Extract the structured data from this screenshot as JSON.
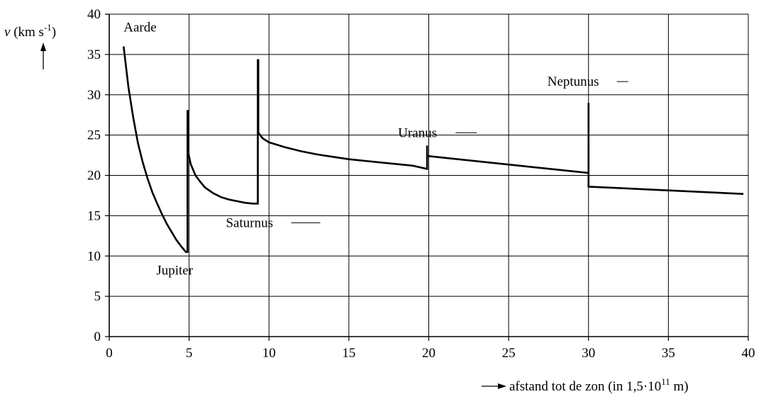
{
  "chart_data": {
    "type": "line",
    "title": "",
    "xlabel": "afstand tot de zon (in 1,5·10¹¹ m)",
    "xlabel_parts": {
      "main": "afstand tot de zon (in 1,5·10",
      "exp": "11",
      "end": " m)"
    },
    "ylabel": "v (km s⁻¹)",
    "ylabel_parts": {
      "var": "v",
      "unit": " (km s",
      "exp": "-1",
      "end": ")"
    },
    "xlim": [
      0,
      40
    ],
    "ylim": [
      0,
      40
    ],
    "xticks": [
      "0",
      "5",
      "10",
      "15",
      "20",
      "25",
      "30",
      "35",
      "40"
    ],
    "yticks": [
      "0",
      "5",
      "10",
      "15",
      "20",
      "25",
      "30",
      "35",
      "40"
    ],
    "grid": true,
    "series": [
      {
        "x": [
          0.9,
          1.2,
          1.5,
          1.8,
          2.1,
          2.4,
          2.7,
          3.0,
          3.3,
          3.6,
          3.9,
          4.2,
          4.5,
          4.8,
          4.9,
          4.9,
          4.93,
          4.93,
          4.93,
          5.1,
          5.4,
          5.7,
          6.0,
          6.5,
          7.0,
          7.5,
          8.0,
          8.5,
          9.0,
          9.3,
          9.3,
          9.33,
          9.33,
          9.6,
          10.0,
          11.0,
          12.0,
          13.0,
          14.0,
          15.0,
          16.0,
          17.0,
          18.0,
          19.0,
          19.9,
          19.9,
          19.9,
          19.95,
          19.95,
          30.0,
          30.0,
          30.0,
          30.02,
          39.7
        ],
        "y": [
          36.0,
          31.0,
          27.2,
          24.0,
          21.6,
          19.6,
          17.9,
          16.5,
          15.2,
          14.0,
          13.0,
          12.0,
          11.2,
          10.5,
          10.5,
          28.0,
          28.0,
          26.5,
          23.0,
          21.4,
          20.0,
          19.2,
          18.5,
          17.8,
          17.3,
          17.0,
          16.8,
          16.6,
          16.5,
          16.5,
          34.3,
          34.3,
          25.3,
          24.6,
          24.1,
          23.5,
          23.0,
          22.6,
          22.3,
          22.0,
          21.8,
          21.6,
          21.4,
          21.2,
          20.8,
          23.7,
          22.4,
          22.4,
          22.4,
          20.3,
          29.0,
          18.6,
          18.6,
          17.7
        ]
      }
    ],
    "annotations": [
      {
        "text": "Aarde",
        "x": 0.9,
        "y": 36.0
      },
      {
        "text": "Jupiter",
        "x": 4.9,
        "y": 10.5
      },
      {
        "text": "Saturnus",
        "x": 9.3,
        "y": 16.5
      },
      {
        "text": "Uranus",
        "x": 19.9,
        "y": 23.7
      },
      {
        "text": "Neptunus",
        "x": 30.0,
        "y": 29.0
      }
    ]
  }
}
